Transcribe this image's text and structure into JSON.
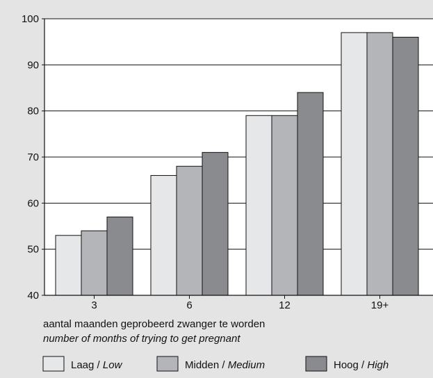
{
  "chart_data": {
    "type": "bar",
    "title": "",
    "categories": [
      "3",
      "6",
      "12",
      "19+"
    ],
    "series": [
      {
        "name": "Laag",
        "name_en": "Low",
        "color": "#e6e7e9",
        "values": [
          53,
          66,
          79,
          97
        ]
      },
      {
        "name": "Midden",
        "name_en": "Medium",
        "color": "#b4b5b8",
        "values": [
          54,
          68,
          79,
          97
        ]
      },
      {
        "name": "Hoog",
        "name_en": "High",
        "color": "#8a8b8e",
        "values": [
          57,
          71,
          84,
          96
        ]
      }
    ],
    "ylim": [
      40,
      100
    ],
    "yticks": [
      40,
      50,
      60,
      70,
      80,
      90,
      100
    ],
    "grid": true,
    "xlabel": "aantal maanden geprobeerd zwanger te worden",
    "xlabel_en": "number of months of trying to get pregnant",
    "ylabel": "",
    "legend_position": "bottom",
    "legend_separator": " / "
  }
}
